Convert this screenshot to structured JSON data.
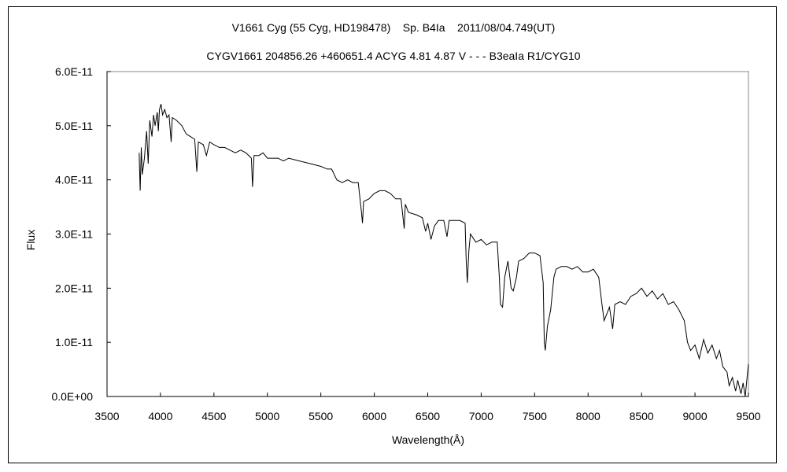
{
  "chart_data": {
    "type": "line",
    "title": "V1661 Cyg (55 Cyg, HD198478)    Sp. B4Ia    2011/08/04.749(UT)",
    "subtitle": "CYGV1661 204856.26 +460651.4 ACYG 4.81  4.87  V - - - B3eaIa R1/CYG10",
    "xlabel": "Wavelength(Å)",
    "ylabel": "Flux",
    "xlim": [
      3500,
      9500
    ],
    "ylim": [
      0,
      6e-11
    ],
    "xticks": [
      "3500",
      "4000",
      "4500",
      "5000",
      "5500",
      "6000",
      "6500",
      "7000",
      "7500",
      "8000",
      "8500",
      "9000",
      "9500"
    ],
    "yticks": [
      "0.0E+00",
      "1.0E-11",
      "2.0E-11",
      "3.0E-11",
      "4.0E-11",
      "5.0E-11",
      "6.0E-11"
    ],
    "grid": false,
    "y_unit_scale": 1e-11,
    "series": [
      {
        "name": "V1661 Cyg",
        "points": [
          [
            3800,
            4.5
          ],
          [
            3810,
            3.8
          ],
          [
            3820,
            4.6
          ],
          [
            3830,
            4.1
          ],
          [
            3850,
            4.4
          ],
          [
            3870,
            4.9
          ],
          [
            3885,
            4.3
          ],
          [
            3900,
            5.1
          ],
          [
            3920,
            4.8
          ],
          [
            3935,
            5.2
          ],
          [
            3950,
            5.0
          ],
          [
            3970,
            5.25
          ],
          [
            3980,
            4.9
          ],
          [
            3990,
            5.3
          ],
          [
            4005,
            5.4
          ],
          [
            4020,
            5.2
          ],
          [
            4040,
            5.3
          ],
          [
            4060,
            5.15
          ],
          [
            4080,
            5.2
          ],
          [
            4100,
            4.7
          ],
          [
            4110,
            5.15
          ],
          [
            4150,
            5.1
          ],
          [
            4200,
            5.0
          ],
          [
            4240,
            4.85
          ],
          [
            4280,
            4.8
          ],
          [
            4320,
            4.75
          ],
          [
            4340,
            4.15
          ],
          [
            4355,
            4.7
          ],
          [
            4400,
            4.65
          ],
          [
            4430,
            4.45
          ],
          [
            4460,
            4.7
          ],
          [
            4500,
            4.65
          ],
          [
            4550,
            4.6
          ],
          [
            4600,
            4.6
          ],
          [
            4650,
            4.55
          ],
          [
            4700,
            4.5
          ],
          [
            4750,
            4.55
          ],
          [
            4800,
            4.5
          ],
          [
            4850,
            4.4
          ],
          [
            4861,
            3.87
          ],
          [
            4875,
            4.45
          ],
          [
            4920,
            4.45
          ],
          [
            4960,
            4.5
          ],
          [
            5000,
            4.4
          ],
          [
            5050,
            4.4
          ],
          [
            5100,
            4.4
          ],
          [
            5150,
            4.35
          ],
          [
            5200,
            4.4
          ],
          [
            5300,
            4.35
          ],
          [
            5400,
            4.3
          ],
          [
            5500,
            4.25
          ],
          [
            5560,
            4.2
          ],
          [
            5600,
            4.2
          ],
          [
            5650,
            4.0
          ],
          [
            5700,
            3.95
          ],
          [
            5750,
            4.0
          ],
          [
            5800,
            3.95
          ],
          [
            5850,
            3.95
          ],
          [
            5880,
            3.4
          ],
          [
            5890,
            3.2
          ],
          [
            5900,
            3.6
          ],
          [
            5950,
            3.65
          ],
          [
            6000,
            3.75
          ],
          [
            6050,
            3.8
          ],
          [
            6100,
            3.8
          ],
          [
            6150,
            3.75
          ],
          [
            6200,
            3.65
          ],
          [
            6250,
            3.65
          ],
          [
            6280,
            3.1
          ],
          [
            6290,
            3.55
          ],
          [
            6320,
            3.4
          ],
          [
            6400,
            3.35
          ],
          [
            6450,
            3.3
          ],
          [
            6480,
            3.05
          ],
          [
            6500,
            3.2
          ],
          [
            6530,
            2.9
          ],
          [
            6563,
            3.15
          ],
          [
            6600,
            3.25
          ],
          [
            6650,
            3.25
          ],
          [
            6680,
            2.95
          ],
          [
            6700,
            3.25
          ],
          [
            6800,
            3.25
          ],
          [
            6850,
            3.2
          ],
          [
            6860,
            2.5
          ],
          [
            6870,
            2.1
          ],
          [
            6885,
            2.7
          ],
          [
            6900,
            3.0
          ],
          [
            6950,
            2.85
          ],
          [
            7000,
            2.9
          ],
          [
            7050,
            2.8
          ],
          [
            7100,
            2.85
          ],
          [
            7150,
            2.85
          ],
          [
            7170,
            2.2
          ],
          [
            7180,
            1.7
          ],
          [
            7200,
            1.65
          ],
          [
            7220,
            2.2
          ],
          [
            7250,
            2.5
          ],
          [
            7280,
            2.0
          ],
          [
            7300,
            1.95
          ],
          [
            7330,
            2.2
          ],
          [
            7350,
            2.5
          ],
          [
            7400,
            2.55
          ],
          [
            7450,
            2.65
          ],
          [
            7500,
            2.65
          ],
          [
            7550,
            2.6
          ],
          [
            7580,
            2.1
          ],
          [
            7590,
            1.0
          ],
          [
            7600,
            0.85
          ],
          [
            7620,
            1.3
          ],
          [
            7650,
            1.6
          ],
          [
            7680,
            2.2
          ],
          [
            7700,
            2.35
          ],
          [
            7750,
            2.4
          ],
          [
            7800,
            2.4
          ],
          [
            7850,
            2.35
          ],
          [
            7900,
            2.4
          ],
          [
            7950,
            2.3
          ],
          [
            8000,
            2.3
          ],
          [
            8050,
            2.35
          ],
          [
            8100,
            2.2
          ],
          [
            8130,
            1.7
          ],
          [
            8150,
            1.4
          ],
          [
            8180,
            1.55
          ],
          [
            8200,
            1.65
          ],
          [
            8230,
            1.25
          ],
          [
            8250,
            1.7
          ],
          [
            8300,
            1.75
          ],
          [
            8350,
            1.7
          ],
          [
            8400,
            1.85
          ],
          [
            8450,
            1.9
          ],
          [
            8500,
            2.0
          ],
          [
            8550,
            1.85
          ],
          [
            8600,
            1.95
          ],
          [
            8650,
            1.8
          ],
          [
            8700,
            1.9
          ],
          [
            8750,
            1.7
          ],
          [
            8800,
            1.75
          ],
          [
            8850,
            1.6
          ],
          [
            8900,
            1.4
          ],
          [
            8930,
            1.0
          ],
          [
            8960,
            0.85
          ],
          [
            9000,
            0.95
          ],
          [
            9040,
            0.7
          ],
          [
            9080,
            1.05
          ],
          [
            9120,
            0.8
          ],
          [
            9160,
            0.95
          ],
          [
            9200,
            0.7
          ],
          [
            9230,
            0.85
          ],
          [
            9260,
            0.55
          ],
          [
            9300,
            0.45
          ],
          [
            9320,
            0.2
          ],
          [
            9350,
            0.35
          ],
          [
            9380,
            0.1
          ],
          [
            9400,
            0.3
          ],
          [
            9430,
            0.05
          ],
          [
            9450,
            0.25
          ],
          [
            9470,
            0.0
          ],
          [
            9490,
            0.4
          ],
          [
            9500,
            0.6
          ]
        ]
      }
    ]
  }
}
